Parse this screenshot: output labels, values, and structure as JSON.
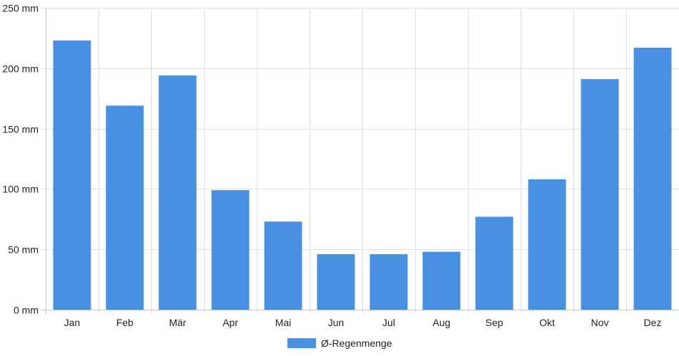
{
  "chart_data": {
    "type": "bar",
    "categories": [
      "Jan",
      "Feb",
      "Mär",
      "Apr",
      "Mai",
      "Jun",
      "Jul",
      "Aug",
      "Sep",
      "Okt",
      "Nov",
      "Dez"
    ],
    "series": [
      {
        "name": "Ø-Regenmenge",
        "values": [
          223,
          169,
          194,
          99,
          73,
          46,
          46,
          48,
          77,
          108,
          191,
          217
        ],
        "color": "#4a90e2"
      }
    ],
    "y_ticks": [
      "0 mm",
      "50 mm",
      "100 mm",
      "150 mm",
      "200 mm",
      "250 mm"
    ],
    "ylim": [
      0,
      250
    ],
    "y_tick_step": 50,
    "grid": true,
    "legend_position": "bottom-center"
  }
}
